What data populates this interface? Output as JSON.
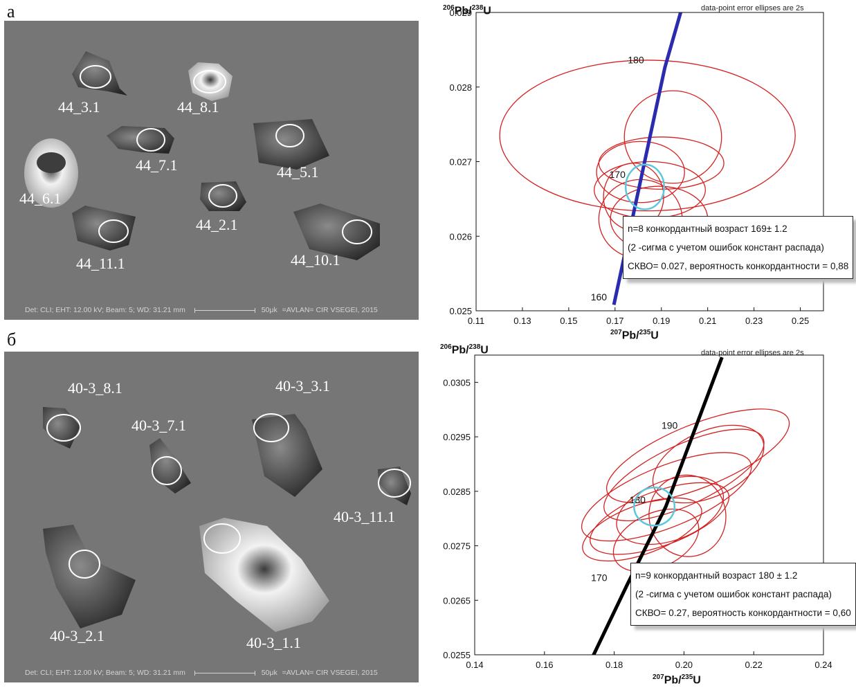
{
  "panel_a": {
    "label": "а",
    "cl_image": {
      "grains": [
        "44_3.1",
        "44_8.1",
        "44_7.1",
        "44_5.1",
        "44_6.1",
        "44_2.1",
        "44_11.1",
        "44_10.1"
      ],
      "footer": {
        "det": "Det: CLI; EHT: 12.00 kV; Beam: 5; WD: 31.21 mm",
        "scale": "50μk",
        "credit": "=AVLAN= CIR VSEGEI, 2015"
      }
    },
    "result_box": {
      "line1": "n=8 конкордантный возраст 169± 1.2",
      "line2": "(2 -сигма с учетом ошибок констант  распада)",
      "line3": "СКВО= 0.027, вероятность конкордантности = 0,88"
    }
  },
  "panel_b": {
    "label": "б",
    "cl_image": {
      "grains": [
        "40-3_8.1",
        "40-3_7.1",
        "40-3_3.1",
        "40-3_11.1",
        "40-3_2.1",
        "40-3_1.1"
      ],
      "footer": {
        "det": "Det: CLI; EHT: 12.00 kV; Beam: 5; WD: 31.21 mm",
        "scale": "50μk",
        "credit": "=AVLAN= CIR VSEGEI, 2015"
      }
    },
    "result_box": {
      "line1": "n=9 конкордантный возраст 180 ± 1.2",
      "line2": "(2 -сигма с учетом ошибок констант  распада)",
      "line3": "СКВО= 0.27, вероятность конкордантности = 0,60"
    }
  },
  "chart_data": [
    {
      "type": "scatter",
      "ylabel": "206Pb/238U",
      "xlabel": "207Pb/235U",
      "note": "data-point error ellipses are 2s",
      "xlim": [
        0.11,
        0.26
      ],
      "ylim": [
        0.025,
        0.029
      ],
      "xticks": [
        "0.11",
        "0.13",
        "0.15",
        "0.17",
        "0.19",
        "0.21",
        "0.23",
        "0.25"
      ],
      "yticks": [
        "0.025",
        "0.026",
        "0.027",
        "0.028",
        "0.029"
      ],
      "concordia": {
        "color": "#2b2bb0",
        "x": [
          0.1695,
          0.1805,
          0.1915,
          0.1985
        ],
        "y": [
          0.02508,
          0.02667,
          0.02826,
          0.02902
        ]
      },
      "age_labels": [
        {
          "text": "160",
          "x": 0.1665,
          "y": 0.02514
        },
        {
          "text": "170",
          "x": 0.1745,
          "y": 0.02678
        },
        {
          "text": "180",
          "x": 0.1825,
          "y": 0.02832
        }
      ],
      "ellipse_color": "#d42020",
      "ellipses": [
        {
          "cx": 0.184,
          "cy": 0.02735,
          "rx": 0.0638,
          "ry": 0.00101
        },
        {
          "cx": 0.195,
          "cy": 0.02733,
          "rx": 0.021,
          "ry": 0.00062
        },
        {
          "cx": 0.19,
          "cy": 0.02698,
          "rx": 0.027,
          "ry": 0.00035
        },
        {
          "cx": 0.181,
          "cy": 0.02686,
          "rx": 0.019,
          "ry": 0.00041
        },
        {
          "cx": 0.185,
          "cy": 0.02662,
          "rx": 0.024,
          "ry": 0.00038
        },
        {
          "cx": 0.178,
          "cy": 0.02653,
          "rx": 0.013,
          "ry": 0.00045
        },
        {
          "cx": 0.181,
          "cy": 0.02623,
          "rx": 0.018,
          "ry": 0.00053
        },
        {
          "cx": 0.189,
          "cy": 0.02623,
          "rx": 0.021,
          "ry": 0.00044
        }
      ],
      "concordant_ellipse": {
        "color": "#5bc8dc",
        "cx": 0.1829,
        "cy": 0.02666,
        "rx": 0.0083,
        "ry": 0.0003
      }
    },
    {
      "type": "scatter",
      "ylabel": "206Pb/238U",
      "xlabel": "207Pb/235U",
      "note": "data-point error ellipses are 2s",
      "xlim": [
        0.14,
        0.24
      ],
      "ylim": [
        0.0255,
        0.031
      ],
      "xticks": [
        "0.14",
        "0.16",
        "0.18",
        "0.20",
        "0.22",
        "0.24"
      ],
      "yticks": [
        "0.0255",
        "0.0265",
        "0.0275",
        "0.0285",
        "0.0295",
        "0.0305"
      ],
      "concordia": {
        "color": "#000000",
        "x": [
          0.1735,
          0.1836,
          0.1948,
          0.2109
        ],
        "y": [
          0.02542,
          0.02677,
          0.02822,
          0.03096
        ]
      },
      "age_labels": [
        {
          "text": "170",
          "x": 0.178,
          "y": 0.02685
        },
        {
          "text": "180",
          "x": 0.189,
          "y": 0.02828
        },
        {
          "text": "190",
          "x": 0.1982,
          "y": 0.02965
        }
      ],
      "ellipse_color": "#d42020",
      "ellipses": [
        {
          "cx": 0.204,
          "cy": 0.02915,
          "rx": 0.028,
          "ry": 0.00058,
          "rot": -22
        },
        {
          "cx": 0.207,
          "cy": 0.029,
          "rx": 0.017,
          "ry": 0.0006,
          "rot": -25
        },
        {
          "cx": 0.2,
          "cy": 0.0288,
          "rx": 0.025,
          "ry": 0.00055,
          "rot": -25
        },
        {
          "cx": 0.195,
          "cy": 0.0284,
          "rx": 0.026,
          "ry": 0.00056,
          "rot": -22
        },
        {
          "cx": 0.193,
          "cy": 0.028,
          "rx": 0.021,
          "ry": 0.0005,
          "rot": -20
        },
        {
          "cx": 0.196,
          "cy": 0.02815,
          "rx": 0.016,
          "ry": 0.00055,
          "rot": -20
        },
        {
          "cx": 0.188,
          "cy": 0.0278,
          "rx": 0.018,
          "ry": 0.00045,
          "rot": -20
        },
        {
          "cx": 0.201,
          "cy": 0.02805,
          "rx": 0.011,
          "ry": 0.00075,
          "rot": -10
        },
        {
          "cx": 0.192,
          "cy": 0.0276,
          "rx": 0.013,
          "ry": 0.0005,
          "rot": -25
        }
      ],
      "concordant_ellipse": {
        "color": "#5bc8dc",
        "cx": 0.1915,
        "cy": 0.02822,
        "rx": 0.0058,
        "ry": 0.00035
      }
    }
  ]
}
